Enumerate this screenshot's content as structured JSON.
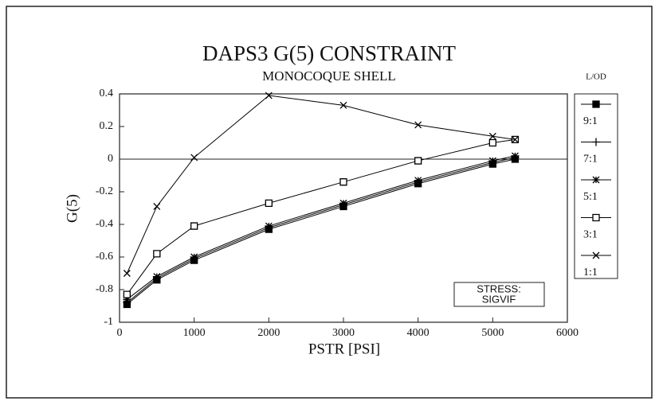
{
  "chart_data": {
    "type": "line",
    "title": "DAPS3 G(5) CONSTRAINT",
    "subtitle": "MONOCOQUE SHELL",
    "xlabel": "PSTR [PSI]",
    "ylabel": "G(5)",
    "legend_title": "L/OD",
    "annotation": [
      "STRESS:",
      "SIGVIF"
    ],
    "x": [
      100,
      500,
      1000,
      2000,
      3000,
      4000,
      5000,
      5300
    ],
    "series": [
      {
        "name": "9:1",
        "color": "#000000",
        "marker": "filled-square",
        "values": [
          -0.89,
          -0.74,
          -0.62,
          -0.43,
          -0.29,
          -0.15,
          -0.03,
          0.0
        ]
      },
      {
        "name": "7:1",
        "color": "#000000",
        "marker": "plus",
        "values": [
          -0.88,
          -0.73,
          -0.61,
          -0.42,
          -0.28,
          -0.14,
          -0.02,
          0.01
        ]
      },
      {
        "name": "5:1",
        "color": "#000000",
        "marker": "asterisk",
        "values": [
          -0.86,
          -0.72,
          -0.6,
          -0.41,
          -0.27,
          -0.13,
          -0.01,
          0.02
        ]
      },
      {
        "name": "3:1",
        "color": "#000000",
        "marker": "square",
        "values": [
          -0.83,
          -0.58,
          -0.41,
          -0.27,
          -0.14,
          -0.01,
          0.1,
          0.12
        ]
      },
      {
        "name": "1:1",
        "color": "#000000",
        "marker": "x",
        "values": [
          -0.7,
          -0.29,
          0.01,
          0.39,
          0.33,
          0.21,
          0.14,
          0.12
        ]
      }
    ],
    "xlim": [
      0,
      6000
    ],
    "xticks": [
      0,
      1000,
      2000,
      3000,
      4000,
      5000,
      6000
    ],
    "ylim": [
      -1,
      0.4
    ],
    "yticks": [
      -1,
      -0.8,
      -0.6,
      -0.4,
      -0.2,
      0,
      0.2,
      0.4
    ],
    "zero_line": true,
    "grid": false,
    "legend": "right"
  }
}
